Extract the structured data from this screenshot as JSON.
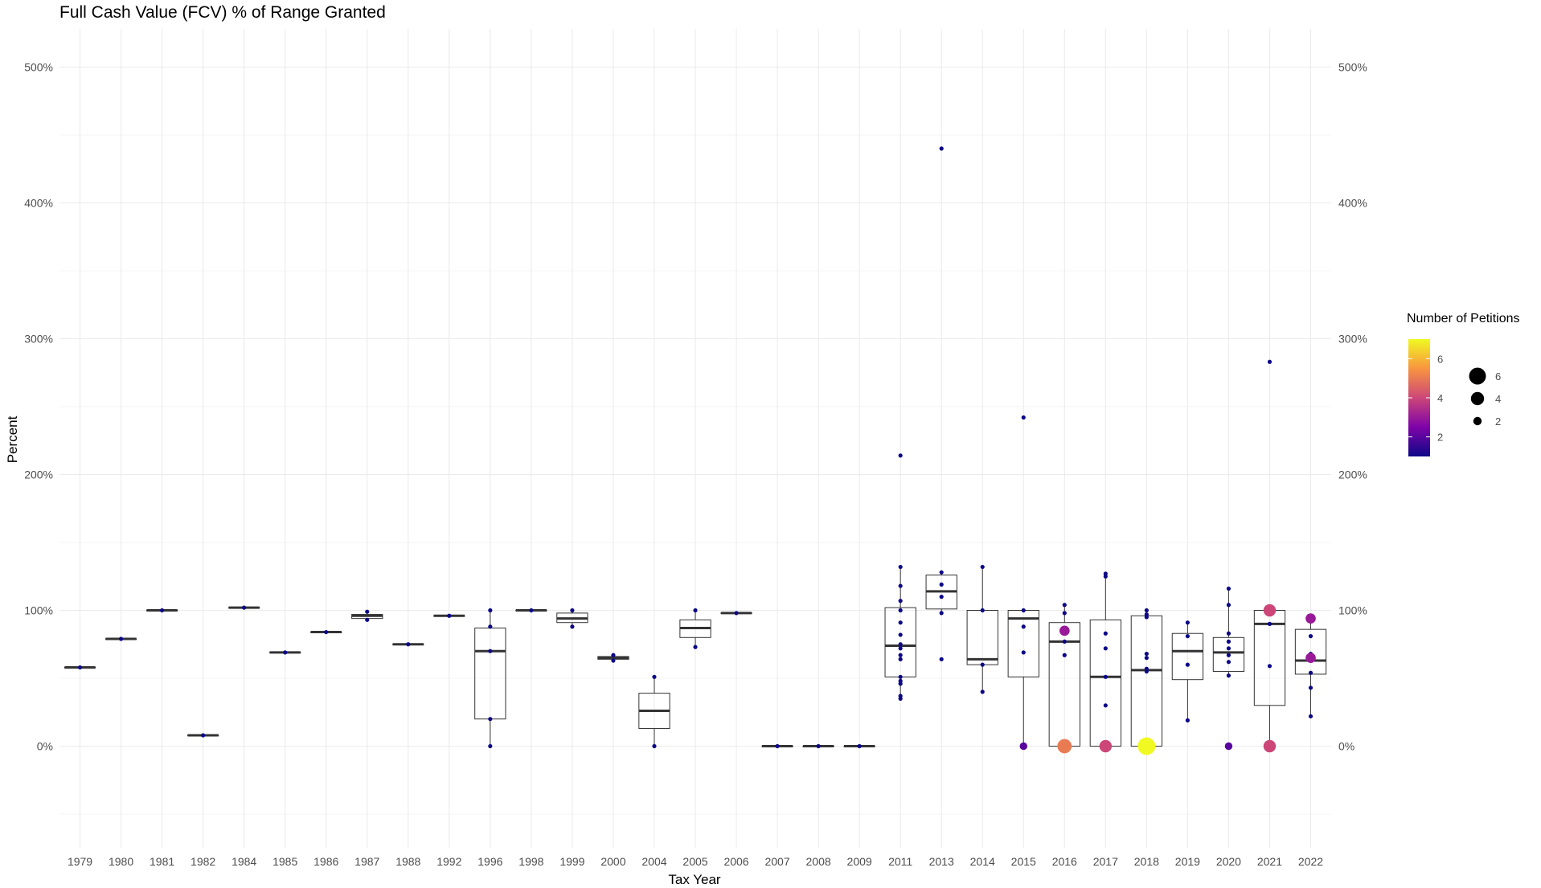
{
  "chart_data": {
    "type": "box",
    "title": "Full Cash Value (FCV) % of Range Granted",
    "xlabel": "Tax Year",
    "ylabel": "Percent",
    "ylim": [
      -50,
      520
    ],
    "y_ticks": [
      "0%",
      "100%",
      "200%",
      "300%",
      "400%",
      "500%"
    ],
    "y_tick_values": [
      0,
      100,
      200,
      300,
      400,
      500
    ],
    "secondary_y_axis": true,
    "grid": true,
    "categories": [
      "1979",
      "1980",
      "1981",
      "1982",
      "1984",
      "1985",
      "1986",
      "1987",
      "1988",
      "1992",
      "1996",
      "1998",
      "1999",
      "2000",
      "2004",
      "2005",
      "2006",
      "2007",
      "2008",
      "2009",
      "2011",
      "2013",
      "2014",
      "2015",
      "2016",
      "2017",
      "2018",
      "2019",
      "2020",
      "2021",
      "2022"
    ],
    "boxes": [
      {
        "x": "1979",
        "q1": 58,
        "median": 58,
        "q3": 58,
        "lower": 58,
        "upper": 58
      },
      {
        "x": "1980",
        "q1": 79,
        "median": 79,
        "q3": 79,
        "lower": 79,
        "upper": 79
      },
      {
        "x": "1981",
        "q1": 100,
        "median": 100,
        "q3": 100,
        "lower": 100,
        "upper": 100
      },
      {
        "x": "1982",
        "q1": 8,
        "median": 8,
        "q3": 8,
        "lower": 8,
        "upper": 8
      },
      {
        "x": "1984",
        "q1": 102,
        "median": 102,
        "q3": 102,
        "lower": 102,
        "upper": 102
      },
      {
        "x": "1985",
        "q1": 69,
        "median": 69,
        "q3": 69,
        "lower": 69,
        "upper": 69
      },
      {
        "x": "1986",
        "q1": 84,
        "median": 84,
        "q3": 84,
        "lower": 84,
        "upper": 84
      },
      {
        "x": "1987",
        "q1": 94,
        "median": 96,
        "q3": 97,
        "lower": 93,
        "upper": 99
      },
      {
        "x": "1988",
        "q1": 75,
        "median": 75,
        "q3": 75,
        "lower": 75,
        "upper": 75
      },
      {
        "x": "1992",
        "q1": 96,
        "median": 96,
        "q3": 96,
        "lower": 96,
        "upper": 96
      },
      {
        "x": "1996",
        "q1": 20,
        "median": 70,
        "q3": 87,
        "lower": 0,
        "upper": 100
      },
      {
        "x": "1998",
        "q1": 100,
        "median": 100,
        "q3": 100,
        "lower": 100,
        "upper": 100
      },
      {
        "x": "1999",
        "q1": 91,
        "median": 94,
        "q3": 98,
        "lower": 88,
        "upper": 100
      },
      {
        "x": "2000",
        "q1": 64,
        "median": 65,
        "q3": 66,
        "lower": 63,
        "upper": 67
      },
      {
        "x": "2004",
        "q1": 13,
        "median": 26,
        "q3": 39,
        "lower": 0,
        "upper": 51
      },
      {
        "x": "2005",
        "q1": 80,
        "median": 87,
        "q3": 93,
        "lower": 73,
        "upper": 100
      },
      {
        "x": "2006",
        "q1": 98,
        "median": 98,
        "q3": 98,
        "lower": 98,
        "upper": 98
      },
      {
        "x": "2007",
        "q1": 0,
        "median": 0,
        "q3": 0,
        "lower": 0,
        "upper": 0
      },
      {
        "x": "2008",
        "q1": 0,
        "median": 0,
        "q3": 0,
        "lower": 0,
        "upper": 0
      },
      {
        "x": "2009",
        "q1": 0,
        "median": 0,
        "q3": 0,
        "lower": 0,
        "upper": 0
      },
      {
        "x": "2011",
        "q1": 51,
        "median": 74,
        "q3": 102,
        "lower": 35,
        "upper": 132
      },
      {
        "x": "2013",
        "q1": 101,
        "median": 114,
        "q3": 126,
        "lower": 98,
        "upper": 128
      },
      {
        "x": "2014",
        "q1": 60,
        "median": 64,
        "q3": 100,
        "lower": 40,
        "upper": 132
      },
      {
        "x": "2015",
        "q1": 51,
        "median": 94,
        "q3": 100,
        "lower": 0,
        "upper": 100
      },
      {
        "x": "2016",
        "q1": 0,
        "median": 77,
        "q3": 91,
        "lower": 0,
        "upper": 104
      },
      {
        "x": "2017",
        "q1": 0,
        "median": 51,
        "q3": 93,
        "lower": 0,
        "upper": 127
      },
      {
        "x": "2018",
        "q1": 0,
        "median": 56,
        "q3": 96,
        "lower": 0,
        "upper": 100
      },
      {
        "x": "2019",
        "q1": 49,
        "median": 70,
        "q3": 83,
        "lower": 19,
        "upper": 91
      },
      {
        "x": "2020",
        "q1": 55,
        "median": 69,
        "q3": 80,
        "lower": 52,
        "upper": 116
      },
      {
        "x": "2021",
        "q1": 30,
        "median": 90,
        "q3": 100,
        "lower": 0,
        "upper": 100
      },
      {
        "x": "2022",
        "q1": 53,
        "median": 63,
        "q3": 86,
        "lower": 22,
        "upper": 94
      }
    ],
    "points": [
      {
        "x": "1979",
        "y": 58,
        "n": 1
      },
      {
        "x": "1980",
        "y": 79,
        "n": 1
      },
      {
        "x": "1981",
        "y": 100,
        "n": 1
      },
      {
        "x": "1982",
        "y": 8,
        "n": 1
      },
      {
        "x": "1984",
        "y": 102,
        "n": 1
      },
      {
        "x": "1985",
        "y": 69,
        "n": 1
      },
      {
        "x": "1986",
        "y": 84,
        "n": 1
      },
      {
        "x": "1987",
        "y": 99,
        "n": 1
      },
      {
        "x": "1987",
        "y": 93,
        "n": 1
      },
      {
        "x": "1988",
        "y": 75,
        "n": 1
      },
      {
        "x": "1992",
        "y": 96,
        "n": 1
      },
      {
        "x": "1996",
        "y": 100,
        "n": 1
      },
      {
        "x": "1996",
        "y": 88,
        "n": 1
      },
      {
        "x": "1996",
        "y": 70,
        "n": 1
      },
      {
        "x": "1996",
        "y": 20,
        "n": 1
      },
      {
        "x": "1996",
        "y": 0,
        "n": 1
      },
      {
        "x": "1998",
        "y": 100,
        "n": 1
      },
      {
        "x": "1999",
        "y": 100,
        "n": 1
      },
      {
        "x": "1999",
        "y": 88,
        "n": 1
      },
      {
        "x": "2000",
        "y": 67,
        "n": 1
      },
      {
        "x": "2000",
        "y": 63,
        "n": 1
      },
      {
        "x": "2004",
        "y": 51,
        "n": 1
      },
      {
        "x": "2004",
        "y": 0,
        "n": 1
      },
      {
        "x": "2005",
        "y": 100,
        "n": 1
      },
      {
        "x": "2005",
        "y": 73,
        "n": 1
      },
      {
        "x": "2006",
        "y": 98,
        "n": 1
      },
      {
        "x": "2007",
        "y": 0,
        "n": 1
      },
      {
        "x": "2008",
        "y": 0,
        "n": 1
      },
      {
        "x": "2009",
        "y": 0,
        "n": 1
      },
      {
        "x": "2011",
        "y": 214,
        "n": 1
      },
      {
        "x": "2011",
        "y": 132,
        "n": 1
      },
      {
        "x": "2011",
        "y": 118,
        "n": 1
      },
      {
        "x": "2011",
        "y": 107,
        "n": 1
      },
      {
        "x": "2011",
        "y": 100,
        "n": 1
      },
      {
        "x": "2011",
        "y": 91,
        "n": 1
      },
      {
        "x": "2011",
        "y": 82,
        "n": 1
      },
      {
        "x": "2011",
        "y": 75,
        "n": 1
      },
      {
        "x": "2011",
        "y": 72,
        "n": 1
      },
      {
        "x": "2011",
        "y": 67,
        "n": 1
      },
      {
        "x": "2011",
        "y": 64,
        "n": 1
      },
      {
        "x": "2011",
        "y": 51,
        "n": 1
      },
      {
        "x": "2011",
        "y": 48,
        "n": 1
      },
      {
        "x": "2011",
        "y": 46,
        "n": 1
      },
      {
        "x": "2011",
        "y": 37,
        "n": 1
      },
      {
        "x": "2011",
        "y": 35,
        "n": 1
      },
      {
        "x": "2013",
        "y": 440,
        "n": 1
      },
      {
        "x": "2013",
        "y": 128,
        "n": 1
      },
      {
        "x": "2013",
        "y": 119,
        "n": 1
      },
      {
        "x": "2013",
        "y": 110,
        "n": 1
      },
      {
        "x": "2013",
        "y": 98,
        "n": 1
      },
      {
        "x": "2013",
        "y": 64,
        "n": 1
      },
      {
        "x": "2014",
        "y": 132,
        "n": 1
      },
      {
        "x": "2014",
        "y": 100,
        "n": 1
      },
      {
        "x": "2014",
        "y": 60,
        "n": 1
      },
      {
        "x": "2014",
        "y": 40,
        "n": 1
      },
      {
        "x": "2015",
        "y": 242,
        "n": 1
      },
      {
        "x": "2015",
        "y": 100,
        "n": 1
      },
      {
        "x": "2015",
        "y": 88,
        "n": 1
      },
      {
        "x": "2015",
        "y": 69,
        "n": 1
      },
      {
        "x": "2015",
        "y": 0,
        "n": 2
      },
      {
        "x": "2016",
        "y": 104,
        "n": 1
      },
      {
        "x": "2016",
        "y": 98,
        "n": 1
      },
      {
        "x": "2016",
        "y": 85,
        "n": 3
      },
      {
        "x": "2016",
        "y": 77,
        "n": 1
      },
      {
        "x": "2016",
        "y": 67,
        "n": 1
      },
      {
        "x": "2016",
        "y": 0,
        "n": 5
      },
      {
        "x": "2017",
        "y": 127,
        "n": 1
      },
      {
        "x": "2017",
        "y": 125,
        "n": 1
      },
      {
        "x": "2017",
        "y": 83,
        "n": 1
      },
      {
        "x": "2017",
        "y": 72,
        "n": 1
      },
      {
        "x": "2017",
        "y": 51,
        "n": 1
      },
      {
        "x": "2017",
        "y": 30,
        "n": 1
      },
      {
        "x": "2017",
        "y": 0,
        "n": 4
      },
      {
        "x": "2018",
        "y": 100,
        "n": 1
      },
      {
        "x": "2018",
        "y": 97,
        "n": 1
      },
      {
        "x": "2018",
        "y": 95,
        "n": 1
      },
      {
        "x": "2018",
        "y": 68,
        "n": 1
      },
      {
        "x": "2018",
        "y": 65,
        "n": 1
      },
      {
        "x": "2018",
        "y": 57,
        "n": 1
      },
      {
        "x": "2018",
        "y": 55,
        "n": 1
      },
      {
        "x": "2018",
        "y": 0,
        "n": 7
      },
      {
        "x": "2019",
        "y": 91,
        "n": 1
      },
      {
        "x": "2019",
        "y": 81,
        "n": 1
      },
      {
        "x": "2019",
        "y": 60,
        "n": 1
      },
      {
        "x": "2019",
        "y": 19,
        "n": 1
      },
      {
        "x": "2020",
        "y": 116,
        "n": 1
      },
      {
        "x": "2020",
        "y": 104,
        "n": 1
      },
      {
        "x": "2020",
        "y": 83,
        "n": 1
      },
      {
        "x": "2020",
        "y": 77,
        "n": 1
      },
      {
        "x": "2020",
        "y": 72,
        "n": 1
      },
      {
        "x": "2020",
        "y": 67,
        "n": 1
      },
      {
        "x": "2020",
        "y": 62,
        "n": 1
      },
      {
        "x": "2020",
        "y": 52,
        "n": 1
      },
      {
        "x": "2020",
        "y": 0,
        "n": 2
      },
      {
        "x": "2021",
        "y": 283,
        "n": 1
      },
      {
        "x": "2021",
        "y": 100,
        "n": 4
      },
      {
        "x": "2021",
        "y": 90,
        "n": 1
      },
      {
        "x": "2021",
        "y": 59,
        "n": 1
      },
      {
        "x": "2021",
        "y": 0,
        "n": 4
      },
      {
        "x": "2022",
        "y": 94,
        "n": 3
      },
      {
        "x": "2022",
        "y": 81,
        "n": 1
      },
      {
        "x": "2022",
        "y": 68,
        "n": 1
      },
      {
        "x": "2022",
        "y": 65,
        "n": 3
      },
      {
        "x": "2022",
        "y": 54,
        "n": 1
      },
      {
        "x": "2022",
        "y": 43,
        "n": 1
      },
      {
        "x": "2022",
        "y": 22,
        "n": 1
      }
    ],
    "legend": {
      "title": "Number of Petitions",
      "position": "right",
      "color_scale": "plasma",
      "color_range": [
        1,
        7
      ],
      "color_ticks": [
        "2",
        "4",
        "6"
      ],
      "color_tick_values": [
        2,
        4,
        6
      ],
      "size_ticks": [
        "6",
        "4",
        "2"
      ],
      "size_tick_values": [
        6,
        4,
        2
      ]
    }
  }
}
